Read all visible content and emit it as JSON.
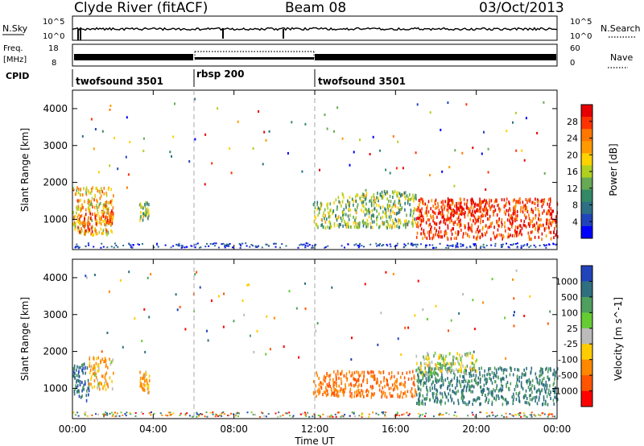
{
  "header": {
    "station": "Clyde River (fitACF)",
    "beam": "Beam 08",
    "date": "03/Oct/2013"
  },
  "noise_panel": {
    "left_label": "N.Sky",
    "right_label": "N.Search",
    "left_ticks": [
      "10^5",
      "10^0"
    ],
    "right_ticks": [
      "10^5",
      "10^0"
    ]
  },
  "freq_panel": {
    "left_label_1": "Freq.",
    "left_label_2": "[MHz]",
    "left_ticks": [
      "18",
      "8"
    ],
    "right_label": "Nave",
    "right_ticks": [
      "60",
      "0"
    ]
  },
  "cpid": {
    "label": "CPID",
    "segments": [
      {
        "name": "twofsound 3501",
        "start_hr": 0,
        "end_hr": 6
      },
      {
        "name": "rbsp 200",
        "start_hr": 6,
        "end_hr": 12
      },
      {
        "name": "twofsound 3501",
        "start_hr": 12,
        "end_hr": 24
      }
    ]
  },
  "power_panel": {
    "ylabel": "Slant Range [km]",
    "yticks": [
      "4000",
      "3000",
      "2000",
      "1000"
    ],
    "colorbar_label": "Power [dB]",
    "colorbar_ticks": [
      "28",
      "24",
      "20",
      "16",
      "12",
      "8",
      "4"
    ],
    "colors": [
      "#e60000",
      "#ff3300",
      "#ff7700",
      "#ff9a00",
      "#ffd200",
      "#b0d020",
      "#66aa55",
      "#338866",
      "#2d6f84",
      "#2244bb",
      "#0000ff"
    ]
  },
  "velocity_panel": {
    "ylabel": "Slant Range [km]",
    "yticks": [
      "4000",
      "3000",
      "2000",
      "1000"
    ],
    "colorbar_label": "Velocity [m s^-1]",
    "colorbar_ticks": [
      "1000",
      "500",
      "100",
      "25",
      "-25",
      "-100",
      "-500",
      "-1000"
    ],
    "colors": [
      "#2244bb",
      "#2f6f7f",
      "#4f9f5f",
      "#66cc33",
      "#bbbbbb",
      "#ffcc00",
      "#ff8800",
      "#ff5500",
      "#ff0000"
    ]
  },
  "xaxis": {
    "label": "Time UT",
    "ticks": [
      "00:00",
      "04:00",
      "08:00",
      "12:00",
      "16:00",
      "20:00",
      "00:00"
    ]
  },
  "chart_data": [
    {
      "type": "heatmap",
      "title": "Power",
      "xlabel": "Time UT",
      "ylabel": "Slant Range [km]",
      "xlim": [
        0,
        24
      ],
      "ylim": [
        180,
        4500
      ],
      "colorbar": {
        "label": "Power [dB]",
        "range": [
          0,
          32
        ]
      },
      "regions": [
        {
          "t": [
            0.0,
            2.0
          ],
          "range": [
            600,
            1900
          ],
          "power": 20
        },
        {
          "t": [
            0.3,
            1.2
          ],
          "range": [
            700,
            1200
          ],
          "power": 28
        },
        {
          "t": [
            1.4,
            2.0
          ],
          "range": [
            900,
            1300
          ],
          "power": 26
        },
        {
          "t": [
            3.3,
            3.8
          ],
          "range": [
            1000,
            1500
          ],
          "power": 14
        },
        {
          "t": [
            11.9,
            13.0
          ],
          "range": [
            800,
            1500
          ],
          "power": 14
        },
        {
          "t": [
            13.0,
            17.0
          ],
          "range": [
            800,
            1800
          ],
          "power": 14
        },
        {
          "t": [
            17.0,
            24.0
          ],
          "range": [
            500,
            1600
          ],
          "power": 28
        },
        {
          "t": [
            18.5,
            20.5
          ],
          "range": [
            1100,
            1600
          ],
          "power": 30
        }
      ]
    },
    {
      "type": "heatmap",
      "title": "Velocity",
      "xlabel": "Time UT",
      "ylabel": "Slant Range [km]",
      "xlim": [
        0,
        24
      ],
      "ylim": [
        180,
        4500
      ],
      "colorbar": {
        "label": "Velocity [m s^-1]",
        "range": [
          -1000,
          1000
        ]
      },
      "regions": [
        {
          "t": [
            0.0,
            0.8
          ],
          "range": [
            700,
            1700
          ],
          "velocity": 800
        },
        {
          "t": [
            0.8,
            2.0
          ],
          "range": [
            1000,
            1900
          ],
          "velocity": -100
        },
        {
          "t": [
            3.3,
            3.8
          ],
          "range": [
            900,
            1500
          ],
          "velocity": -150
        },
        {
          "t": [
            11.9,
            17.0
          ],
          "range": [
            800,
            1500
          ],
          "velocity": -500
        },
        {
          "t": [
            17.0,
            24.0
          ],
          "range": [
            600,
            1600
          ],
          "velocity": 600
        },
        {
          "t": [
            17.0,
            20.0
          ],
          "range": [
            1400,
            2000
          ],
          "velocity": 30
        }
      ]
    }
  ]
}
